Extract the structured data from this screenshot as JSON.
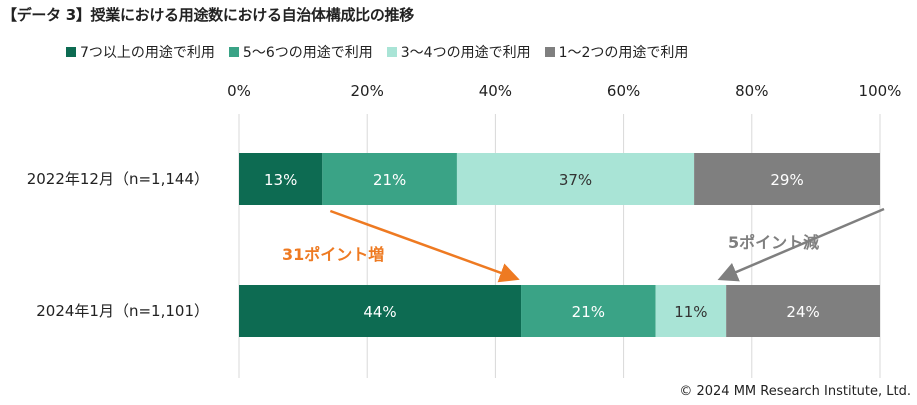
{
  "title": "【データ 3】授業における用途数における自治体構成比の推移",
  "copyright": "© 2024 MM Research Institute, Ltd.",
  "chart_data": {
    "type": "bar",
    "orientation": "horizontal",
    "stacked": true,
    "categories": [
      "2022年12月（n=1,144）",
      "2024年1月（n=1,101）"
    ],
    "series": [
      {
        "name": "7つ以上の用途で利用",
        "color": "#0d6b52",
        "values": [
          13,
          44
        ],
        "labels": [
          "13%",
          "44%"
        ]
      },
      {
        "name": "5〜6つの用途で利用",
        "color": "#3aa386",
        "values": [
          21,
          21
        ],
        "labels": [
          "21%",
          "21%"
        ]
      },
      {
        "name": "3〜4つの用途で利用",
        "color": "#a9e4d6",
        "values": [
          37,
          11
        ],
        "labels": [
          "37%",
          "11%"
        ]
      },
      {
        "name": "1〜2つの用途で利用",
        "color": "#7f7f7f",
        "values": [
          29,
          24
        ],
        "labels": [
          "29%",
          "24%"
        ]
      }
    ],
    "xlim": [
      0,
      100
    ],
    "ticks": [
      0,
      20,
      40,
      60,
      80,
      100
    ],
    "tick_labels": [
      "0%",
      "20%",
      "40%",
      "60%",
      "80%",
      "100%"
    ],
    "grid": true,
    "legend": "top",
    "annotations": [
      {
        "text": "31ポイント増",
        "color": "#ee7a22",
        "from": {
          "series": 0,
          "category": 0
        },
        "to": {
          "series": 0,
          "category": 1
        }
      },
      {
        "text": "5ポイント減",
        "color": "#7f7f7f",
        "from": {
          "series": 3,
          "category": 0
        },
        "to": {
          "series": 3,
          "category": 1
        }
      }
    ]
  }
}
